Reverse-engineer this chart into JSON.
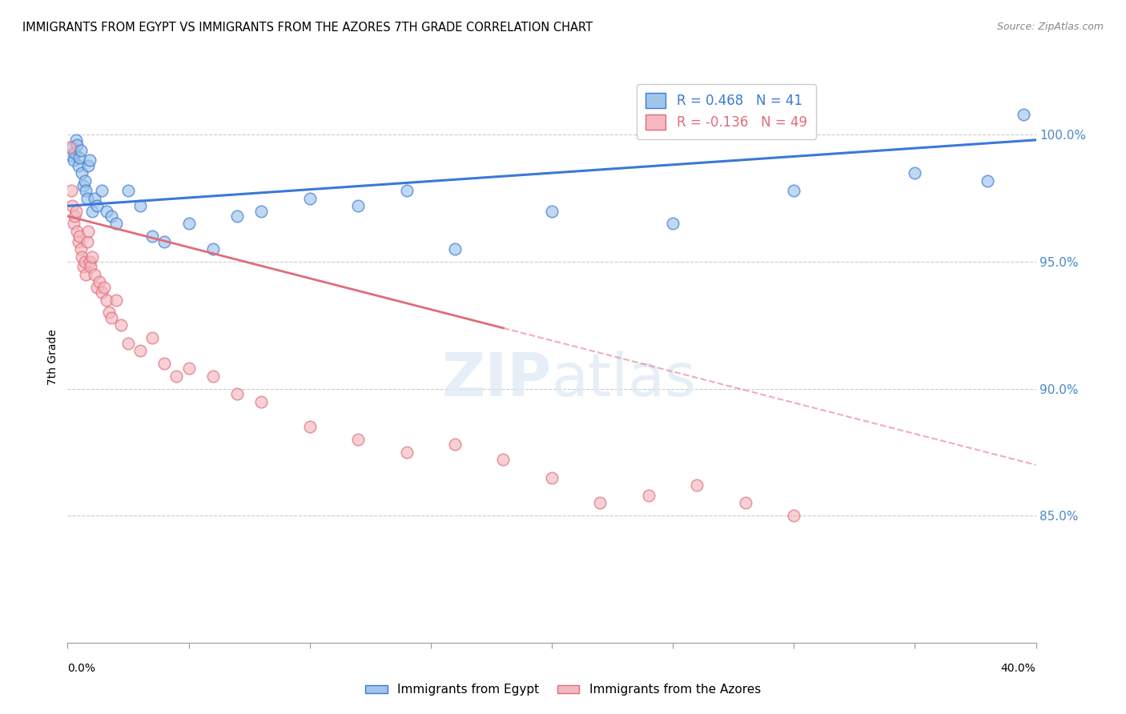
{
  "title": "IMMIGRANTS FROM EGYPT VS IMMIGRANTS FROM THE AZORES 7TH GRADE CORRELATION CHART",
  "source": "Source: ZipAtlas.com",
  "ylabel": "7th Grade",
  "y_ticks": [
    85.0,
    90.0,
    95.0,
    100.0
  ],
  "x_min": 0.0,
  "x_max": 40.0,
  "y_min": 80.0,
  "y_max": 102.5,
  "legend_egypt": "Immigrants from Egypt",
  "legend_azores": "Immigrants from the Azores",
  "R_egypt": 0.468,
  "N_egypt": 41,
  "R_azores": -0.136,
  "N_azores": 49,
  "color_egypt": "#9fc5e8",
  "color_azores": "#f4b8c1",
  "color_trend_egypt": "#3c78d8",
  "color_trend_azores": "#e06c7a",
  "egypt_x": [
    0.15,
    0.2,
    0.25,
    0.3,
    0.35,
    0.4,
    0.45,
    0.5,
    0.55,
    0.6,
    0.65,
    0.7,
    0.75,
    0.8,
    0.85,
    0.9,
    1.0,
    1.1,
    1.2,
    1.4,
    1.6,
    1.8,
    2.0,
    2.5,
    3.0,
    3.5,
    4.0,
    5.0,
    6.0,
    7.0,
    8.0,
    10.0,
    12.0,
    14.0,
    16.0,
    20.0,
    25.0,
    30.0,
    35.0,
    38.0,
    39.5
  ],
  "egypt_y": [
    99.2,
    99.5,
    99.0,
    99.3,
    99.8,
    99.6,
    98.8,
    99.1,
    99.4,
    98.5,
    98.0,
    98.2,
    97.8,
    97.5,
    98.8,
    99.0,
    97.0,
    97.5,
    97.2,
    97.8,
    97.0,
    96.8,
    96.5,
    97.8,
    97.2,
    96.0,
    95.8,
    96.5,
    95.5,
    96.8,
    97.0,
    97.5,
    97.2,
    97.8,
    95.5,
    97.0,
    96.5,
    97.8,
    98.5,
    98.2,
    100.8
  ],
  "azores_x": [
    0.1,
    0.15,
    0.2,
    0.25,
    0.3,
    0.35,
    0.4,
    0.45,
    0.5,
    0.55,
    0.6,
    0.65,
    0.7,
    0.75,
    0.8,
    0.85,
    0.9,
    0.95,
    1.0,
    1.1,
    1.2,
    1.3,
    1.4,
    1.5,
    1.6,
    1.7,
    1.8,
    2.0,
    2.2,
    2.5,
    3.0,
    3.5,
    4.0,
    4.5,
    5.0,
    6.0,
    7.0,
    8.0,
    10.0,
    12.0,
    14.0,
    16.0,
    18.0,
    20.0,
    22.0,
    24.0,
    26.0,
    28.0,
    30.0
  ],
  "azores_y": [
    99.5,
    97.8,
    97.2,
    96.5,
    96.8,
    97.0,
    96.2,
    95.8,
    96.0,
    95.5,
    95.2,
    94.8,
    95.0,
    94.5,
    95.8,
    96.2,
    95.0,
    94.8,
    95.2,
    94.5,
    94.0,
    94.2,
    93.8,
    94.0,
    93.5,
    93.0,
    92.8,
    93.5,
    92.5,
    91.8,
    91.5,
    92.0,
    91.0,
    90.5,
    90.8,
    90.5,
    89.8,
    89.5,
    88.5,
    88.0,
    87.5,
    87.8,
    87.2,
    86.5,
    85.5,
    85.8,
    86.2,
    85.5,
    85.0
  ],
  "trend_egypt_x0": 0.0,
  "trend_egypt_x1": 40.0,
  "trend_egypt_y0": 97.2,
  "trend_egypt_y1": 99.8,
  "trend_azores_x0": 0.0,
  "trend_azores_x1": 40.0,
  "trend_azores_y0": 96.8,
  "trend_azores_y1": 87.0,
  "trend_azores_solid_end": 18.0
}
